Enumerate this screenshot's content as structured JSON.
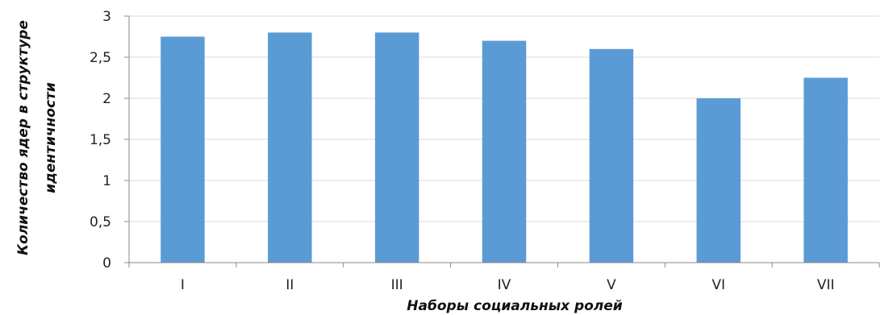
{
  "chart_data": {
    "type": "bar",
    "categories": [
      "I",
      "II",
      "III",
      "IV",
      "V",
      "VI",
      "VII"
    ],
    "values": [
      2.75,
      2.8,
      2.8,
      2.7,
      2.6,
      2.0,
      2.25
    ],
    "ylim": [
      0,
      3
    ],
    "yticks": [
      "0",
      "0,5",
      "1",
      "1,5",
      "2",
      "2,5",
      "3"
    ],
    "xlabel": "Наборы социальных ролей",
    "ylabel_lines": [
      "Количество ядер в структуре",
      "идентичности"
    ],
    "bar_color": "#5b9bd5",
    "grid": true
  }
}
